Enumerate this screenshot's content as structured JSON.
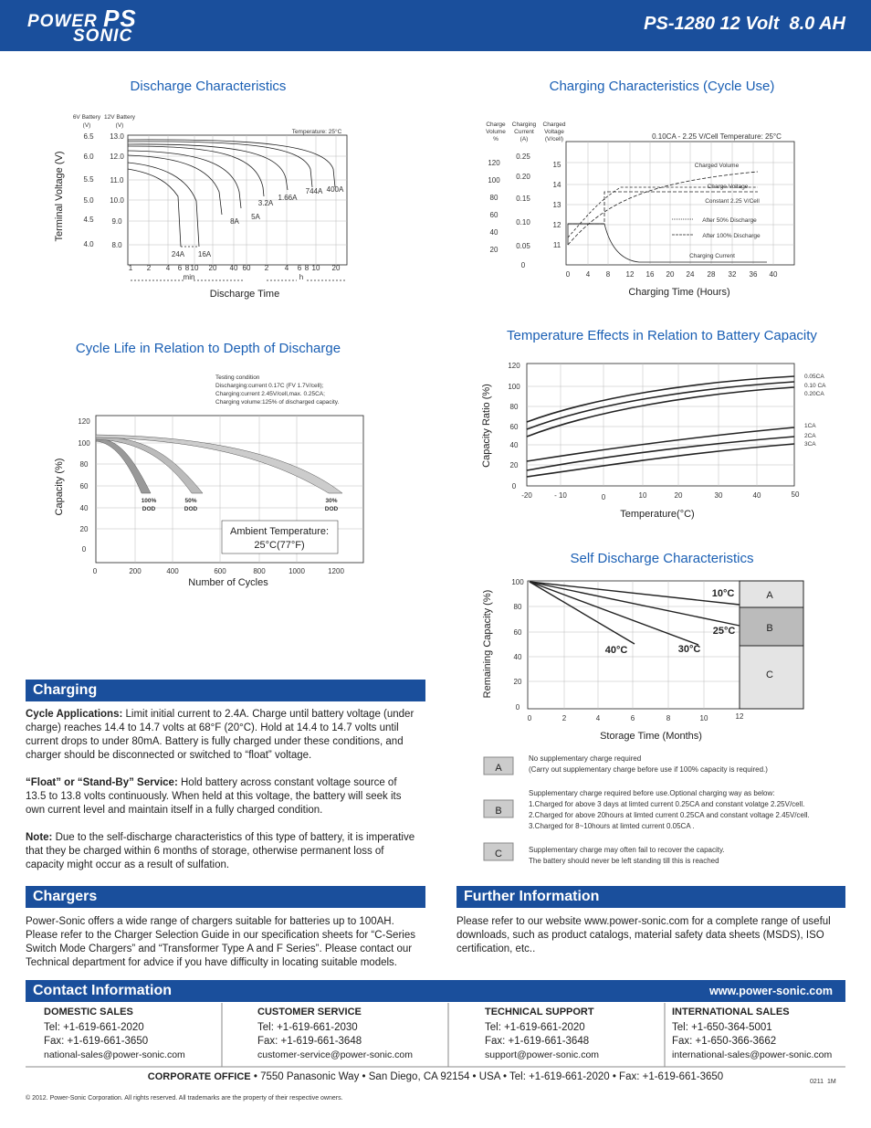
{
  "header": {
    "logo": {
      "top": "POWER",
      "middle": "PS",
      "bottom": "SONIC"
    },
    "title": "PS-1280 12 Volt  8.0 AH"
  },
  "discharge": {
    "title": "Discharge Characteristics",
    "y6_header": [
      "6V Battery",
      "(V)"
    ],
    "y12_header": [
      "12V Battery",
      "(V)"
    ],
    "y_label": "Terminal Voltage (V)",
    "y6_ticks": [
      "6.5",
      "6.0",
      "5.5",
      "5.0",
      "4.5",
      "4.0"
    ],
    "y12_ticks": [
      "13.0",
      "12.0",
      "11.0",
      "10.0",
      "9.0",
      "8.0"
    ],
    "x_ticks": [
      "1",
      "2",
      "4",
      "6",
      "8",
      "10",
      "20",
      "40",
      "60",
      "2",
      "4",
      "6",
      "8",
      "10",
      "20"
    ],
    "unit_min": "min",
    "unit_h": "h",
    "x_label": "Discharge Time",
    "temperature": "Temperature: 25°C",
    "currents": [
      "24A",
      "16A",
      "8A",
      "5A",
      "3.2A",
      "1.66A",
      "744A",
      "400A"
    ]
  },
  "charging_chart": {
    "title": "Charging Characteristics (Cycle Use)",
    "headers": [
      [
        "Charge",
        "Volume",
        "%"
      ],
      [
        "Charging",
        "Current",
        "(A)"
      ],
      [
        "Charged",
        "Voltage",
        "(V/cell)"
      ]
    ],
    "volume_ticks": [
      "120",
      "100",
      "80",
      "60",
      "40",
      "20"
    ],
    "current_ticks": [
      "0.25",
      "0.20",
      "0.15",
      "0.10",
      "0.05",
      "0"
    ],
    "voltage_ticks": [
      "15",
      "14",
      "13",
      "12",
      "11"
    ],
    "x_ticks": [
      "0",
      "4",
      "8",
      "12",
      "16",
      "20",
      "24",
      "28",
      "32",
      "36",
      "40"
    ],
    "x_label": "Charging Time (Hours)",
    "condition": "0.10CA - 2.25 V/Cell  Temperature: 25°C",
    "legend": [
      "Charged Volume",
      "Charge Voltage",
      "Constant 2.25 V/Cell",
      "After 50% Discharge",
      "After 100% Discharge",
      "Charging Current"
    ]
  },
  "cycle_life": {
    "title": "Cycle Life in Relation to Depth of Discharge",
    "testing": [
      "Testing condition",
      "Discharging:current 0.17C (FV 1.7V/cell);",
      "Charging:current 2.45V/cell,max. 0.25CA;",
      "Charging volume:125% of discharged capacity."
    ],
    "y_ticks": [
      "120",
      "100",
      "80",
      "60",
      "40",
      "20",
      "0"
    ],
    "x_ticks": [
      "0",
      "200",
      "400",
      "600",
      "800",
      "1000",
      "1200"
    ],
    "y_label": "Capacity (%)",
    "x_label": "Number of Cycles",
    "dod": [
      [
        "100%",
        "DOD"
      ],
      [
        "50%",
        "DOD"
      ],
      [
        "30%",
        "DOD"
      ]
    ],
    "ambient": [
      "Ambient Temperature:",
      "25°C(77°F)"
    ]
  },
  "temperature": {
    "title": "Temperature Effects in Relation to Battery Capacity",
    "y_ticks": [
      "120",
      "100",
      "80",
      "60",
      "40",
      "20",
      "0"
    ],
    "x_ticks": [
      "-20",
      "- 10",
      "0",
      "10",
      "20",
      "30",
      "40",
      "50"
    ],
    "y_label": "Capacity Ratio (%)",
    "x_label": "Temperature(°C)",
    "rates": [
      "0.05CA",
      "0.10 CA",
      "0.20CA",
      "1CA",
      "2CA",
      "3CA"
    ]
  },
  "self_discharge": {
    "title": "Self Discharge Characteristics",
    "y_ticks": [
      "100",
      "80",
      "60",
      "40",
      "20",
      "0"
    ],
    "x_ticks": [
      "0",
      "2",
      "4",
      "6",
      "8",
      "10",
      "12"
    ],
    "y_label": "Remaining Capacity (%)",
    "x_label": "Storage Time (Months)",
    "temps": [
      "10°C",
      "25°C",
      "30°C",
      "40°C"
    ],
    "zones": [
      "A",
      "B",
      "C"
    ],
    "notes": [
      [
        "No supplementary charge required",
        "(Carry out supplementary charge before use if 100% capacity is required.)"
      ],
      [
        "Supplementary charge required before use.Optional charging way as below:",
        "1.Charged for above 3 days at limted current 0.25CA and constant volatge 2.25V/cell.",
        "2.Charged for above 20hours at limted current 0.25CA and constant voltage 2.45V/cell.",
        "3.Charged for 8~10hours at limted current 0.05CA ."
      ],
      [
        "Supplementary charge may often fail to recover the capacity.",
        "The battery should never be left standing till this is reached"
      ]
    ]
  },
  "charging": {
    "heading": "Charging",
    "paragraphs": [
      {
        "lead": "Cycle Applications:",
        "text": "Limit initial current to 2.4A. Charge until battery voltage (under charge) reaches 14.4  to 14.7 volts at 68°F (20°C). Hold at 14.4 to 14.7 volts until current drops to under 80mA. Battery is fully charged under these conditions, and charger should be disconnected or switched to “float” voltage."
      },
      {
        "lead": "“Float” or “Stand-By” Service:",
        "text": "Hold battery across constant voltage source of 13.5 to 13.8 volts continuously. When held at this voltage, the battery will seek its own current level and maintain itself in a fully charged condition."
      },
      {
        "lead": "Note:",
        "text": "Due to the self-discharge characteristics of this type of battery, it is imperative that they be charged within 6 months of storage, otherwise permanent loss of capacity might occur as a result of sulfation."
      }
    ]
  },
  "chargers": {
    "heading": "Chargers",
    "text": "Power-Sonic offers a wide range of chargers suitable for batteries up to 100AH. Please refer to the Charger Selection Guide in our specification sheets for “C-Series Switch Mode Chargers” and “Transformer Type A and F Series”. Please contact our Technical department for advice if you have difficulty in locating suitable models."
  },
  "further": {
    "heading": "Further Information",
    "text": "Please refer to our website www.power-sonic.com for a complete range of useful downloads, such as product catalogs, material safety data sheets (MSDS), ISO certification, etc.."
  },
  "contact": {
    "heading": "Contact Information",
    "website": "www.power-sonic.com",
    "columns": [
      {
        "title": "DOMESTIC SALES",
        "tel": "Tel: +1-619-661-2020",
        "fax": "Fax: +1-619-661-3650",
        "email": "national-sales@power-sonic.com"
      },
      {
        "title": "CUSTOMER SERVICE",
        "tel": "Tel: +1-619-661-2030",
        "fax": "Fax: +1-619-661-3648",
        "email": "customer-service@power-sonic.com"
      },
      {
        "title": "TECHNICAL SUPPORT",
        "tel": "Tel: +1-619-661-2020",
        "fax": "Fax: +1-619-661-3648",
        "email": "support@power-sonic.com"
      },
      {
        "title": "INTERNATIONAL SALES",
        "tel": "Tel: +1-650-364-5001",
        "fax": "Fax: +1-650-366-3662",
        "email": "international-sales@power-sonic.com"
      }
    ],
    "corporate_label": "CORPORATE OFFICE",
    "corporate_text": "• 7550 Panasonic Way • San Diego, CA 92154 • USA • Tel: +1-619-661-2020 • Fax: +1-619-661-3650",
    "code": "0211  1M"
  },
  "footer": {
    "copyright": "© 2012. Power-Sonic Corporation. All rights reserved. All trademarks are the property of their respective owners."
  }
}
